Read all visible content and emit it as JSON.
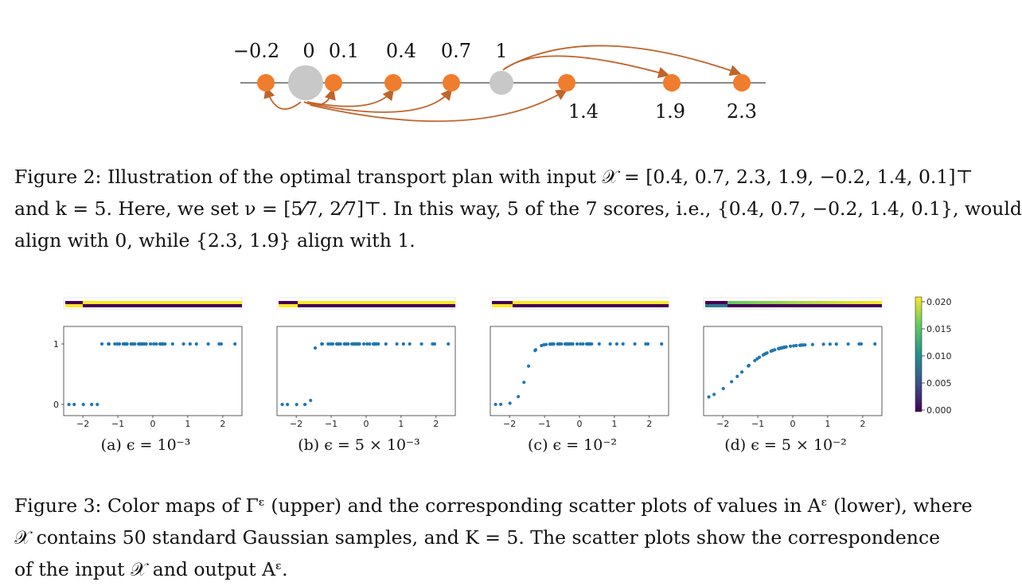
{
  "figure2": {
    "top_labels": [
      "−0.2",
      "0",
      "0.1",
      "0.4",
      "0.7",
      "1"
    ],
    "bottom_labels": [
      "1.4",
      "1.9",
      "2.3"
    ],
    "colors": {
      "score": "#ef7d2d",
      "anchor": "#c8c8c8",
      "arrow": "#c0642a",
      "axis": "#888888"
    },
    "caption_lines": [
      "Figure 2:  Illustration of the optimal transport plan with input 𝒳 = [0.4, 0.7, 2.3, 1.9, −0.2, 1.4, 0.1]⊤",
      "and k = 5. Here, we set ν = [5⁄7, 2⁄7]⊤. In this way, 5 of the 7 scores, i.e., {0.4, 0.7, −0.2, 1.4, 0.1}, would",
      "align with 0, while {2.3, 1.9} align with 1."
    ]
  },
  "figure3": {
    "panels": [
      {
        "label": "(a) ϵ = 10⁻³"
      },
      {
        "label": "(b) ϵ = 5 × 10⁻³"
      },
      {
        "label": "(c) ϵ = 10⁻²"
      },
      {
        "label": "(d) ϵ = 5 × 10⁻²"
      }
    ],
    "x_ticks": [
      "−2",
      "−1",
      "0",
      "1",
      "2"
    ],
    "y_ticks": [
      "0",
      "1"
    ],
    "colorbar_ticks": [
      "0.020",
      "0.015",
      "0.010",
      "0.005",
      "0.000"
    ],
    "colors": {
      "points": "#1f77b4",
      "frame": "#333333"
    },
    "caption_lines": [
      "Figure 3: Color maps of Γᵋ (upper) and the corresponding scatter plots of values in Aᵋ (lower), where",
      "𝒳 contains 50 standard Gaussian samples, and K = 5. The scatter plots show the correspondence",
      "of the input 𝒳 and output Aᵋ."
    ]
  }
}
